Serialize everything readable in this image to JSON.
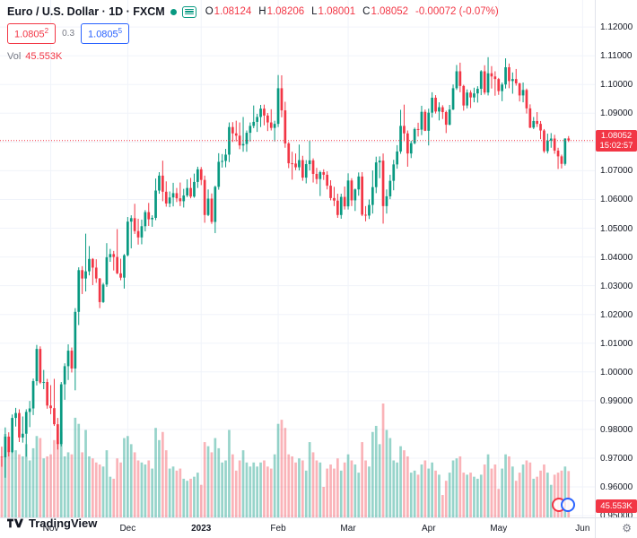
{
  "header": {
    "symbol_title": "Euro / U.S. Dollar · 1D · FXCM",
    "ohlc": {
      "o_label": "O",
      "o": "1.08124",
      "h_label": "H",
      "h": "1.08206",
      "l_label": "L",
      "l": "1.08001",
      "c_label": "C",
      "c": "1.08052",
      "change": "-0.00072 (-0.07%)"
    },
    "bid": "1.0805",
    "bid_sup": "2",
    "spread": "0.3",
    "ask": "1.0805",
    "ask_sup": "5",
    "vol_label": "Vol",
    "vol_value": "45.553K"
  },
  "axis": {
    "price_ticks": [
      "1.12000",
      "1.11000",
      "1.10000",
      "1.09000",
      "1.08000",
      "1.07000",
      "1.06000",
      "1.05000",
      "1.04000",
      "1.03000",
      "1.02000",
      "1.01000",
      "1.00000",
      "0.99000",
      "0.98000",
      "0.97000",
      "0.96000",
      "0.95000"
    ],
    "time_ticks": [
      {
        "label": "Nov",
        "i": 14
      },
      {
        "label": "Dec",
        "i": 36
      },
      {
        "label": "2023",
        "i": 57
      },
      {
        "label": "Feb",
        "i": 79
      },
      {
        "label": "Mar",
        "i": 99
      },
      {
        "label": "Apr",
        "i": 122
      },
      {
        "label": "May",
        "i": 142
      },
      {
        "label": "Jun",
        "i": 166
      }
    ],
    "last_price_badge": {
      "price": "1.08052",
      "countdown": "15:02:57"
    },
    "volume_badge": "45.553K"
  },
  "footer": {
    "logo_text": "TradingView",
    "gear_icon": "⚙"
  },
  "colors": {
    "up": "#089981",
    "down": "#f23645",
    "vol_up": "rgba(8,153,129,0.42)",
    "vol_down": "rgba(242,54,69,0.38)",
    "blue": "#2962ff",
    "grid": "#f0f3fa",
    "text_dark": "#131722",
    "text_gray": "#787b86",
    "axis_border": "#e0e3eb"
  },
  "chart_data": {
    "type": "candlestick+volume",
    "title": "Euro / U.S. Dollar",
    "timeframe": "1D",
    "exchange": "FXCM",
    "ylim": [
      0.9494,
      1.1294
    ],
    "price_step": 0.01,
    "last_price": 1.08052,
    "last_volume_k": 45.553,
    "candles_format": [
      "open",
      "high",
      "low",
      "close",
      "volume_k"
    ],
    "candles": [
      [
        0.9705,
        0.974,
        0.967,
        0.9703,
        58
      ],
      [
        0.9703,
        0.9807,
        0.9632,
        0.9775,
        82
      ],
      [
        0.9775,
        0.979,
        0.9706,
        0.9721,
        70
      ],
      [
        0.9721,
        0.9852,
        0.9718,
        0.984,
        64
      ],
      [
        0.984,
        0.9875,
        0.981,
        0.9857,
        66
      ],
      [
        0.9857,
        0.987,
        0.9756,
        0.9772,
        62
      ],
      [
        0.9772,
        0.9845,
        0.9754,
        0.9785,
        60
      ],
      [
        0.9785,
        0.987,
        0.9705,
        0.9861,
        72
      ],
      [
        0.9861,
        0.9899,
        0.9808,
        0.9873,
        56
      ],
      [
        0.9873,
        0.9977,
        0.985,
        0.9968,
        68
      ],
      [
        0.9968,
        1.0094,
        0.9953,
        1.008,
        80
      ],
      [
        1.008,
        1.0089,
        0.9958,
        0.9963,
        78
      ],
      [
        0.9963,
        1.0007,
        0.994,
        0.9965,
        58
      ],
      [
        0.9965,
        0.9976,
        0.9872,
        0.9883,
        60
      ],
      [
        0.9883,
        0.9954,
        0.9853,
        0.9874,
        62
      ],
      [
        0.9874,
        0.9976,
        0.9812,
        0.9818,
        76
      ],
      [
        0.9818,
        0.984,
        0.973,
        0.9749,
        74
      ],
      [
        0.9749,
        0.9965,
        0.9741,
        0.9957,
        84
      ],
      [
        0.9957,
        1.003,
        0.9903,
        1.002,
        60
      ],
      [
        1.002,
        1.0096,
        0.9972,
        1.0074,
        64
      ],
      [
        1.0074,
        1.0085,
        0.9998,
        1.0012,
        62
      ],
      [
        1.0012,
        1.0222,
        0.9936,
        1.0209,
        98
      ],
      [
        1.0209,
        1.0364,
        1.0163,
        1.0354,
        92
      ],
      [
        1.0354,
        1.0368,
        1.0271,
        1.0325,
        64
      ],
      [
        1.0325,
        1.0481,
        1.028,
        1.035,
        86
      ],
      [
        1.035,
        1.0438,
        1.0336,
        1.0393,
        60
      ],
      [
        1.0393,
        1.0396,
        1.0302,
        1.0363,
        58
      ],
      [
        1.0363,
        1.0392,
        1.031,
        1.0325,
        54
      ],
      [
        1.0325,
        1.0327,
        1.0222,
        1.0243,
        52
      ],
      [
        1.0243,
        1.031,
        1.024,
        1.0304,
        50
      ],
      [
        1.0304,
        1.0448,
        1.0296,
        1.0399,
        66
      ],
      [
        1.0399,
        1.0428,
        1.0383,
        1.041,
        40
      ],
      [
        1.041,
        1.0421,
        1.0353,
        1.04,
        38
      ],
      [
        1.04,
        1.0497,
        1.034,
        1.0343,
        58
      ],
      [
        1.0343,
        1.0394,
        1.0319,
        1.0328,
        54
      ],
      [
        1.0328,
        1.041,
        1.029,
        1.0406,
        78
      ],
      [
        1.0406,
        1.0539,
        1.0402,
        1.0523,
        80
      ],
      [
        1.0523,
        1.0545,
        1.043,
        1.0535,
        72
      ],
      [
        1.0535,
        1.0585,
        1.048,
        1.049,
        64
      ],
      [
        1.049,
        1.0533,
        1.0443,
        1.0468,
        56
      ],
      [
        1.0468,
        1.053,
        1.0444,
        1.0507,
        54
      ],
      [
        1.0507,
        1.0563,
        1.0489,
        1.0556,
        52
      ],
      [
        1.0556,
        1.0588,
        1.0508,
        1.0531,
        56
      ],
      [
        1.0531,
        1.0545,
        1.0505,
        1.0536,
        48
      ],
      [
        1.0536,
        1.0673,
        1.0528,
        1.0631,
        88
      ],
      [
        1.0631,
        1.0695,
        1.062,
        1.0683,
        76
      ],
      [
        1.0683,
        1.0735,
        1.0594,
        1.0627,
        84
      ],
      [
        1.0627,
        1.0663,
        1.0575,
        1.0586,
        66
      ],
      [
        1.0586,
        1.0628,
        1.0573,
        1.0607,
        48
      ],
      [
        1.0607,
        1.0658,
        1.0576,
        1.0622,
        50
      ],
      [
        1.0622,
        1.064,
        1.0591,
        1.0604,
        46
      ],
      [
        1.0604,
        1.0659,
        1.0577,
        1.0594,
        48
      ],
      [
        1.0594,
        1.0637,
        1.0572,
        1.0614,
        38
      ],
      [
        1.0614,
        1.067,
        1.0608,
        1.064,
        36
      ],
      [
        1.064,
        1.0675,
        1.0604,
        1.061,
        38
      ],
      [
        1.061,
        1.069,
        1.0606,
        1.0661,
        40
      ],
      [
        1.0661,
        1.0714,
        1.064,
        1.0705,
        44
      ],
      [
        1.0705,
        1.0713,
        1.065,
        1.0668,
        32
      ],
      [
        1.0668,
        1.0683,
        1.0519,
        1.0546,
        74
      ],
      [
        1.0546,
        1.0635,
        1.0542,
        1.0603,
        70
      ],
      [
        1.0603,
        1.0621,
        1.0515,
        1.0522,
        64
      ],
      [
        1.0522,
        1.0648,
        1.0483,
        1.0644,
        78
      ],
      [
        1.0644,
        1.0761,
        1.0634,
        1.0731,
        68
      ],
      [
        1.0731,
        1.0758,
        1.0711,
        1.0734,
        54
      ],
      [
        1.0734,
        1.0776,
        1.0712,
        1.0756,
        56
      ],
      [
        1.0756,
        1.0868,
        1.073,
        1.0852,
        86
      ],
      [
        1.0852,
        1.0869,
        1.08,
        1.083,
        62
      ],
      [
        1.083,
        1.0874,
        1.0802,
        1.0822,
        46
      ],
      [
        1.0822,
        1.0868,
        1.0775,
        1.0788,
        56
      ],
      [
        1.0788,
        1.0887,
        1.0766,
        1.0793,
        66
      ],
      [
        1.0793,
        1.084,
        1.0766,
        1.0832,
        54
      ],
      [
        1.0832,
        1.0868,
        1.0802,
        1.0856,
        50
      ],
      [
        1.0856,
        1.0927,
        1.0848,
        1.087,
        54
      ],
      [
        1.087,
        1.0898,
        1.0835,
        1.0887,
        50
      ],
      [
        1.0887,
        1.0929,
        1.0852,
        1.0916,
        54
      ],
      [
        1.0916,
        1.093,
        1.0858,
        1.0892,
        56
      ],
      [
        1.0892,
        1.0901,
        1.0838,
        1.0868,
        50
      ],
      [
        1.0868,
        1.0914,
        1.084,
        1.0849,
        48
      ],
      [
        1.0849,
        1.0874,
        1.0802,
        1.0863,
        62
      ],
      [
        1.0863,
        1.1033,
        1.0852,
        1.0987,
        92
      ],
      [
        1.0987,
        1.1032,
        1.0886,
        1.091,
        96
      ],
      [
        1.091,
        1.094,
        1.078,
        1.0795,
        88
      ],
      [
        1.0795,
        1.08,
        1.0709,
        1.0726,
        62
      ],
      [
        1.0726,
        1.0766,
        1.0669,
        1.0725,
        60
      ],
      [
        1.0725,
        1.076,
        1.0702,
        1.0712,
        54
      ],
      [
        1.0712,
        1.0791,
        1.0701,
        1.0737,
        58
      ],
      [
        1.0737,
        1.0752,
        1.0665,
        1.0676,
        56
      ],
      [
        1.0676,
        1.0737,
        1.0656,
        1.0723,
        46
      ],
      [
        1.0723,
        1.0804,
        1.0701,
        1.0736,
        74
      ],
      [
        1.0736,
        1.0743,
        1.0659,
        1.0689,
        64
      ],
      [
        1.0689,
        1.071,
        1.0654,
        1.0671,
        56
      ],
      [
        1.0671,
        1.07,
        1.0612,
        1.0695,
        54
      ],
      [
        1.0695,
        1.0705,
        1.0668,
        1.0686,
        30
      ],
      [
        1.0686,
        1.0698,
        1.0635,
        1.0648,
        48
      ],
      [
        1.0648,
        1.0667,
        1.0597,
        1.0605,
        52
      ],
      [
        1.0605,
        1.0644,
        1.0577,
        1.0596,
        48
      ],
      [
        1.0596,
        1.062,
        1.0536,
        1.0546,
        58
      ],
      [
        1.0546,
        1.062,
        1.0533,
        1.0609,
        46
      ],
      [
        1.0609,
        1.0645,
        1.0565,
        1.0576,
        54
      ],
      [
        1.0576,
        1.0691,
        1.0565,
        1.0666,
        62
      ],
      [
        1.0666,
        1.0674,
        1.0577,
        1.0597,
        56
      ],
      [
        1.0597,
        1.0638,
        1.056,
        1.0635,
        52
      ],
      [
        1.0635,
        1.0694,
        1.0613,
        1.068,
        44
      ],
      [
        1.068,
        1.0695,
        1.0542,
        1.0547,
        74
      ],
      [
        1.0547,
        1.0577,
        1.0524,
        1.0544,
        56
      ],
      [
        1.0544,
        1.06,
        1.0532,
        1.0581,
        50
      ],
      [
        1.0581,
        1.0701,
        1.0551,
        1.0643,
        84
      ],
      [
        1.0643,
        1.0749,
        1.0622,
        1.0729,
        90
      ],
      [
        1.0729,
        1.075,
        1.0674,
        1.0735,
        72
      ],
      [
        1.0735,
        1.076,
        1.0516,
        1.0577,
        112
      ],
      [
        1.0577,
        1.0635,
        1.0551,
        1.0611,
        86
      ],
      [
        1.0611,
        1.0686,
        1.0601,
        1.0665,
        78
      ],
      [
        1.0665,
        1.0738,
        1.0632,
        1.0722,
        56
      ],
      [
        1.0722,
        1.0789,
        1.0707,
        1.0767,
        54
      ],
      [
        1.0767,
        1.0912,
        1.0759,
        1.0856,
        70
      ],
      [
        1.0856,
        1.093,
        1.0803,
        1.083,
        66
      ],
      [
        1.083,
        1.084,
        1.0714,
        1.076,
        60
      ],
      [
        1.076,
        1.0804,
        1.0744,
        1.0796,
        44
      ],
      [
        1.0796,
        1.085,
        1.0792,
        1.0845,
        46
      ],
      [
        1.0845,
        1.0867,
        1.0819,
        1.0843,
        42
      ],
      [
        1.0843,
        1.0926,
        1.0824,
        1.0905,
        52
      ],
      [
        1.0905,
        1.0913,
        1.0838,
        1.0839,
        56
      ],
      [
        1.0839,
        1.0916,
        1.0788,
        1.0902,
        48
      ],
      [
        1.0902,
        1.0973,
        1.0885,
        1.0954,
        54
      ],
      [
        1.0954,
        1.0963,
        1.0899,
        1.0906,
        46
      ],
      [
        1.0906,
        1.0938,
        1.0875,
        1.0921,
        42
      ],
      [
        1.0921,
        1.0928,
        1.088,
        1.0904,
        22
      ],
      [
        1.0904,
        1.0909,
        1.0831,
        1.086,
        36
      ],
      [
        1.086,
        1.0929,
        1.0858,
        1.0913,
        44
      ],
      [
        1.0913,
        1.1,
        1.0911,
        1.0987,
        56
      ],
      [
        1.0987,
        1.1068,
        1.0981,
        1.1046,
        58
      ],
      [
        1.1046,
        1.1076,
        1.0973,
        1.0995,
        60
      ],
      [
        1.0995,
        1.0999,
        1.0909,
        1.0927,
        44
      ],
      [
        1.0927,
        1.0983,
        1.0917,
        1.0972,
        42
      ],
      [
        1.0972,
        1.098,
        1.0918,
        1.0955,
        44
      ],
      [
        1.0955,
        1.0989,
        1.0938,
        1.0969,
        40
      ],
      [
        1.0969,
        1.0994,
        1.0937,
        1.0985,
        38
      ],
      [
        1.0985,
        1.105,
        1.0963,
        1.1046,
        42
      ],
      [
        1.1046,
        1.1067,
        1.0965,
        1.0972,
        52
      ],
      [
        1.0972,
        1.1095,
        1.0962,
        1.1039,
        62
      ],
      [
        1.1039,
        1.1064,
        1.0986,
        1.1028,
        48
      ],
      [
        1.1028,
        1.1046,
        1.0961,
        1.1019,
        52
      ],
      [
        1.1019,
        1.1023,
        1.0964,
        1.0977,
        28
      ],
      [
        1.0977,
        1.1007,
        1.0942,
        1.1,
        48
      ],
      [
        1.1,
        1.1091,
        1.0986,
        1.106,
        62
      ],
      [
        1.106,
        1.1073,
        1.0987,
        1.1012,
        60
      ],
      [
        1.1012,
        1.1042,
        1.0968,
        1.1019,
        50
      ],
      [
        1.1019,
        1.1054,
        1.0996,
        1.1004,
        36
      ],
      [
        1.1004,
        1.1006,
        1.0941,
        1.0962,
        44
      ],
      [
        1.0962,
        1.1007,
        1.0938,
        1.0981,
        52
      ],
      [
        1.0981,
        1.0986,
        1.0899,
        1.0917,
        56
      ],
      [
        1.0917,
        1.0931,
        1.0848,
        1.085,
        54
      ],
      [
        1.085,
        1.0887,
        1.0845,
        1.0873,
        38
      ],
      [
        1.0873,
        1.0904,
        1.0852,
        1.0863,
        40
      ],
      [
        1.0863,
        1.0873,
        1.081,
        1.084,
        46
      ],
      [
        1.084,
        1.0845,
        1.0762,
        1.0768,
        52
      ],
      [
        1.0768,
        1.0829,
        1.076,
        1.0805,
        44
      ],
      [
        1.0805,
        1.0831,
        1.078,
        1.0812,
        32
      ],
      [
        1.0812,
        1.0825,
        1.0759,
        1.077,
        42
      ],
      [
        1.077,
        1.078,
        1.0706,
        1.075,
        44
      ],
      [
        1.075,
        1.0756,
        1.0708,
        1.0724,
        46
      ],
      [
        1.0724,
        1.0813,
        1.0718,
        1.0812,
        50
      ],
      [
        1.08124,
        1.08206,
        1.08001,
        1.08052,
        45.553
      ]
    ]
  }
}
